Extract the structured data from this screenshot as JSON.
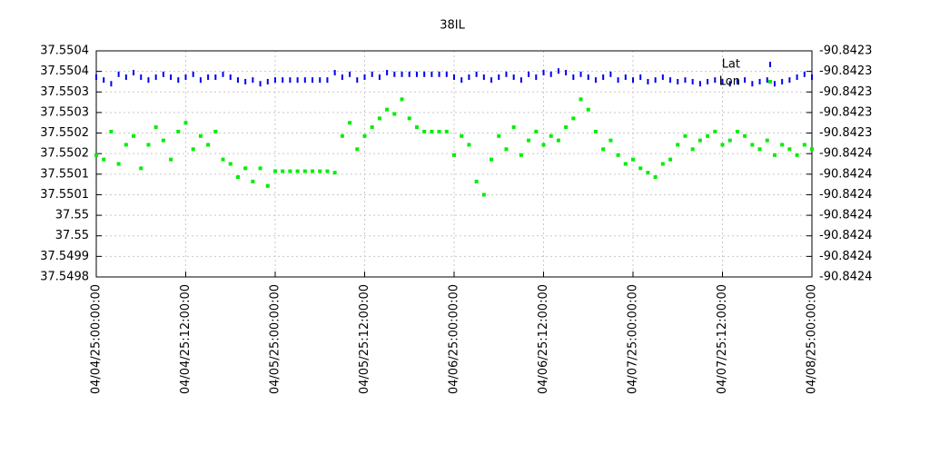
{
  "chart_data": {
    "type": "scatter",
    "title": "38IL",
    "x": [
      "04/04/25:00:00:00",
      "04/04/25:01:00:00",
      "04/04/25:02:00:00",
      "04/04/25:03:00:00",
      "04/04/25:04:00:00",
      "04/04/25:05:00:00",
      "04/04/25:06:00:00",
      "04/04/25:07:00:00",
      "04/04/25:08:00:00",
      "04/04/25:09:00:00",
      "04/04/25:10:00:00",
      "04/04/25:11:00:00",
      "04/04/25:12:00:00",
      "04/04/25:13:00:00",
      "04/04/25:14:00:00",
      "04/04/25:15:00:00",
      "04/04/25:16:00:00",
      "04/04/25:17:00:00",
      "04/04/25:18:00:00",
      "04/04/25:19:00:00",
      "04/04/25:20:00:00",
      "04/04/25:21:00:00",
      "04/04/25:22:00:00",
      "04/04/25:23:00:00",
      "04/05/25:00:00:00",
      "04/05/25:01:00:00",
      "04/05/25:02:00:00",
      "04/05/25:03:00:00",
      "04/05/25:04:00:00",
      "04/05/25:05:00:00",
      "04/05/25:06:00:00",
      "04/05/25:07:00:00",
      "04/05/25:08:00:00",
      "04/05/25:09:00:00",
      "04/05/25:10:00:00",
      "04/05/25:11:00:00",
      "04/05/25:12:00:00",
      "04/05/25:13:00:00",
      "04/05/25:14:00:00",
      "04/05/25:15:00:00",
      "04/05/25:16:00:00",
      "04/05/25:17:00:00",
      "04/05/25:18:00:00",
      "04/05/25:19:00:00",
      "04/05/25:20:00:00",
      "04/05/25:21:00:00",
      "04/05/25:22:00:00",
      "04/05/25:23:00:00",
      "04/06/25:00:00:00",
      "04/06/25:01:00:00",
      "04/06/25:02:00:00",
      "04/06/25:03:00:00",
      "04/06/25:04:00:00",
      "04/06/25:05:00:00",
      "04/06/25:06:00:00",
      "04/06/25:07:00:00",
      "04/06/25:08:00:00",
      "04/06/25:09:00:00",
      "04/06/25:10:00:00",
      "04/06/25:11:00:00",
      "04/06/25:12:00:00",
      "04/06/25:13:00:00",
      "04/06/25:14:00:00",
      "04/06/25:15:00:00",
      "04/06/25:16:00:00",
      "04/06/25:17:00:00",
      "04/06/25:18:00:00",
      "04/06/25:19:00:00",
      "04/06/25:20:00:00",
      "04/06/25:21:00:00",
      "04/06/25:22:00:00",
      "04/06/25:23:00:00",
      "04/07/25:00:00:00",
      "04/07/25:01:00:00",
      "04/07/25:02:00:00",
      "04/07/25:03:00:00",
      "04/07/25:04:00:00",
      "04/07/25:05:00:00",
      "04/07/25:06:00:00",
      "04/07/25:07:00:00",
      "04/07/25:08:00:00",
      "04/07/25:09:00:00",
      "04/07/25:10:00:00",
      "04/07/25:11:00:00",
      "04/07/25:12:00:00",
      "04/07/25:13:00:00",
      "04/07/25:14:00:00",
      "04/07/25:15:00:00",
      "04/07/25:16:00:00",
      "04/07/25:17:00:00",
      "04/07/25:18:00:00",
      "04/07/25:19:00:00",
      "04/07/25:20:00:00",
      "04/07/25:21:00:00",
      "04/07/25:22:00:00",
      "04/07/25:23:00:00",
      "04/08/25:00:00:00"
    ],
    "series": [
      {
        "name": "Lat",
        "color": "#0000ee",
        "values": [
          37.550316,
          37.550309,
          37.5503,
          37.550323,
          37.550316,
          37.550327,
          37.550316,
          37.550309,
          37.550316,
          37.550323,
          37.550316,
          37.550309,
          37.550316,
          37.550323,
          37.550309,
          37.550316,
          37.550316,
          37.550323,
          37.550316,
          37.550309,
          37.550305,
          37.550309,
          37.5503,
          37.550305,
          37.550309,
          37.550309,
          37.550309,
          37.550309,
          37.550309,
          37.550309,
          37.550309,
          37.550309,
          37.550327,
          37.550316,
          37.550323,
          37.550309,
          37.550316,
          37.550323,
          37.550316,
          37.550327,
          37.550323,
          37.550323,
          37.550323,
          37.550323,
          37.550323,
          37.550323,
          37.550323,
          37.550323,
          37.550316,
          37.550309,
          37.550316,
          37.550323,
          37.550316,
          37.550309,
          37.550316,
          37.550323,
          37.550316,
          37.550309,
          37.550323,
          37.550316,
          37.550327,
          37.550323,
          37.550331,
          37.550327,
          37.550316,
          37.550323,
          37.550316,
          37.550309,
          37.550316,
          37.550323,
          37.550309,
          37.550316,
          37.550309,
          37.550316,
          37.550305,
          37.550309,
          37.550316,
          37.550309,
          37.550305,
          37.550309,
          37.550305,
          37.5503,
          37.550305,
          37.550309,
          37.550305,
          37.5503,
          37.550305,
          37.550309,
          37.5503,
          37.550305,
          37.550309,
          37.5503,
          37.550305,
          37.550309,
          37.550316,
          37.550323,
          37.550316
        ]
      },
      {
        "name": "Lon",
        "color": "#00ee00",
        "axis": "y2",
        "values": [
          -90.842357,
          -90.84236,
          -90.842341,
          -90.842363,
          -90.84235,
          -90.842344,
          -90.842366,
          -90.84235,
          -90.842338,
          -90.842347,
          -90.84236,
          -90.842341,
          -90.842335,
          -90.842353,
          -90.842344,
          -90.84235,
          -90.842341,
          -90.84236,
          -90.842363,
          -90.842372,
          -90.842366,
          -90.842375,
          -90.842366,
          -90.842378,
          -90.842368,
          -90.842368,
          -90.842368,
          -90.842368,
          -90.842368,
          -90.842368,
          -90.842368,
          -90.842368,
          -90.842369,
          -90.842344,
          -90.842335,
          -90.842353,
          -90.842344,
          -90.842338,
          -90.842332,
          -90.842326,
          -90.842329,
          -90.842319,
          -90.842332,
          -90.842338,
          -90.842341,
          -90.842341,
          -90.842341,
          -90.842341,
          -90.842357,
          -90.842344,
          -90.84235,
          -90.842375,
          -90.842384,
          -90.84236,
          -90.842344,
          -90.842353,
          -90.842338,
          -90.842357,
          -90.842347,
          -90.842341,
          -90.84235,
          -90.842344,
          -90.842347,
          -90.842338,
          -90.842332,
          -90.842319,
          -90.842326,
          -90.842341,
          -90.842353,
          -90.842347,
          -90.842357,
          -90.842363,
          -90.84236,
          -90.842366,
          -90.842369,
          -90.842372,
          -90.842363,
          -90.84236,
          -90.84235,
          -90.842344,
          -90.842353,
          -90.842347,
          -90.842344,
          -90.842341,
          -90.84235,
          -90.842347,
          -90.842341,
          -90.842344,
          -90.84235,
          -90.842353,
          -90.842347,
          -90.842357,
          -90.84235,
          -90.842353,
          -90.842357,
          -90.84235,
          -90.842353
        ]
      }
    ],
    "xlim": [
      "04/04/25:00:00:00",
      "04/08/25:00:00:00"
    ],
    "xticks": [
      "04/04/25:00:00:00",
      "04/04/25:12:00:00",
      "04/05/25:00:00:00",
      "04/05/25:12:00:00",
      "04/06/25:00:00:00",
      "04/06/25:12:00:00",
      "04/07/25:00:00:00",
      "04/07/25:12:00:00",
      "04/08/25:00:00:00"
    ],
    "ylim": [
      37.54983,
      37.55038
    ],
    "yticks": [
      {
        "value": 37.54983,
        "label": "37.5498"
      },
      {
        "value": 37.54988,
        "label": "37.5499"
      },
      {
        "value": 37.54993,
        "label": "37.55"
      },
      {
        "value": 37.54998,
        "label": "37.55"
      },
      {
        "value": 37.55003,
        "label": "37.5501"
      },
      {
        "value": 37.55008,
        "label": "37.5501"
      },
      {
        "value": 37.55013,
        "label": "37.5502"
      },
      {
        "value": 37.55018,
        "label": "37.5502"
      },
      {
        "value": 37.55023,
        "label": "37.5503"
      },
      {
        "value": 37.55028,
        "label": "37.5503"
      },
      {
        "value": 37.55033,
        "label": "37.5504"
      },
      {
        "value": 37.55038,
        "label": "37.5504"
      }
    ],
    "y2lim": [
      -90.84244,
      -90.842286
    ],
    "y2ticks": [
      {
        "value": -90.84244,
        "label": "-90.8424"
      },
      {
        "value": -90.842426,
        "label": "-90.8424"
      },
      {
        "value": -90.842412,
        "label": "-90.8424"
      },
      {
        "value": -90.842398,
        "label": "-90.8424"
      },
      {
        "value": -90.842384,
        "label": "-90.8424"
      },
      {
        "value": -90.84237,
        "label": "-90.8424"
      },
      {
        "value": -90.842356,
        "label": "-90.8424"
      },
      {
        "value": -90.842342,
        "label": "-90.8423"
      },
      {
        "value": -90.842328,
        "label": "-90.8423"
      },
      {
        "value": -90.842314,
        "label": "-90.8423"
      },
      {
        "value": -90.8423,
        "label": "-90.8423"
      },
      {
        "value": -90.842286,
        "label": "-90.8423"
      }
    ],
    "grid": true,
    "legend": "top-right"
  }
}
